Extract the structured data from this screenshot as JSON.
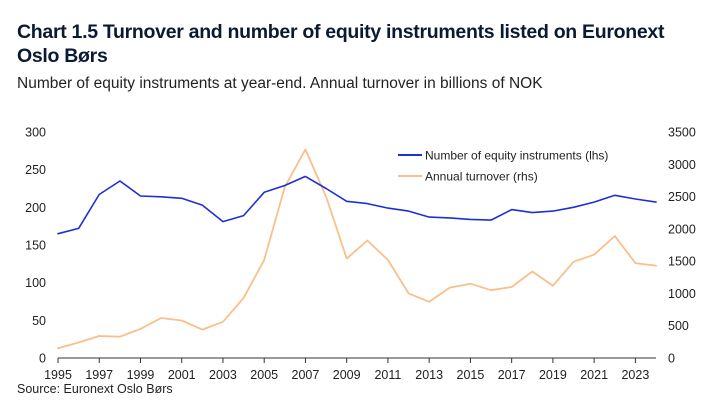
{
  "title": "Chart 1.5 Turnover and number of equity instruments listed on Euronext Oslo Børs",
  "subtitle": "Number of equity instruments at year-end. Annual turnover in billions of NOK",
  "source": "Source: Euronext Oslo Børs",
  "colors": {
    "number_series": "#1f2fd6",
    "turnover_series": "#f9c089",
    "axis": "#333333"
  },
  "chart_data": {
    "type": "line",
    "x": [
      1995,
      1996,
      1997,
      1998,
      1999,
      2000,
      2001,
      2002,
      2003,
      2004,
      2005,
      2006,
      2007,
      2008,
      2009,
      2010,
      2011,
      2012,
      2013,
      2014,
      2015,
      2016,
      2017,
      2018,
      2019,
      2020,
      2021,
      2022,
      2023,
      2024
    ],
    "xticks": [
      "1995",
      "1997",
      "1999",
      "2001",
      "2003",
      "2005",
      "2007",
      "2009",
      "2011",
      "2013",
      "2015",
      "2017",
      "2019",
      "2021",
      "2023"
    ],
    "left_axis": {
      "range": [
        0,
        300
      ],
      "ticks": [
        "0",
        "50",
        "100",
        "150",
        "200",
        "250",
        "300"
      ]
    },
    "right_axis": {
      "range": [
        0,
        3500
      ],
      "ticks": [
        "0",
        "500",
        "1000",
        "1500",
        "2000",
        "2500",
        "3000",
        "3500"
      ]
    },
    "series": [
      {
        "name": "Number of equity instruments (lhs)",
        "axis": "left",
        "values": [
          165,
          172,
          217,
          235,
          215,
          214,
          212,
          203,
          181,
          189,
          220,
          229,
          241,
          225,
          208,
          205,
          199,
          195,
          187,
          186,
          184,
          183,
          197,
          193,
          195,
          200,
          207,
          216,
          211,
          207
        ]
      },
      {
        "name": "Annual turnover (rhs)",
        "axis": "right",
        "values": [
          150,
          240,
          340,
          330,
          450,
          620,
          580,
          440,
          560,
          930,
          1520,
          2650,
          3230,
          2500,
          1540,
          1820,
          1520,
          1000,
          870,
          1090,
          1150,
          1050,
          1100,
          1340,
          1120,
          1490,
          1600,
          1890,
          1470,
          1430
        ]
      }
    ],
    "legend_position": "top-right",
    "grid": false
  }
}
